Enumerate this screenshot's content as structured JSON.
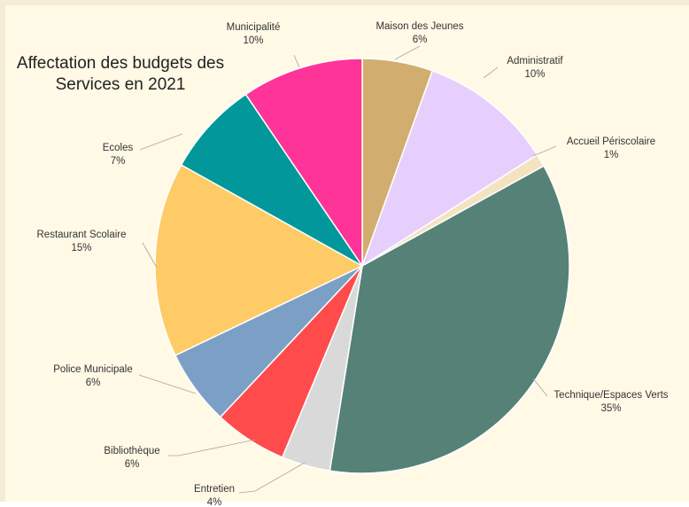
{
  "chart_data": {
    "type": "pie",
    "title_lines": [
      "Affectation des budgets des",
      "Services en 2021"
    ],
    "slices": [
      {
        "label": "Maison des Jeunes",
        "percent_label": "6%",
        "value": 5.5,
        "color": "#d1ae6f"
      },
      {
        "label": "Administratif",
        "percent_label": "10%",
        "value": 10.5,
        "color": "#e6cffd"
      },
      {
        "label": "Accueil Périscolaire",
        "percent_label": "1%",
        "value": 1.0,
        "color": "#f4e3c1"
      },
      {
        "label": "Technique/Espaces Verts",
        "percent_label": "35%",
        "value": 35.5,
        "color": "#558176"
      },
      {
        "label": "Entretien",
        "percent_label": "4%",
        "value": 3.8,
        "color": "#d9d9d9"
      },
      {
        "label": "Bibliothèque",
        "percent_label": "6%",
        "value": 5.7,
        "color": "#ff4b4b"
      },
      {
        "label": "Police Municipale",
        "percent_label": "6%",
        "value": 5.9,
        "color": "#7ca0c5"
      },
      {
        "label": "Restaurant Scolaire",
        "percent_label": "15%",
        "value": 15.2,
        "color": "#fecb67"
      },
      {
        "label": "Ecoles",
        "percent_label": "7%",
        "value": 7.4,
        "color": "#02979a"
      },
      {
        "label": "Municipalité",
        "percent_label": "10%",
        "value": 9.5,
        "color": "#fe3498"
      }
    ]
  }
}
